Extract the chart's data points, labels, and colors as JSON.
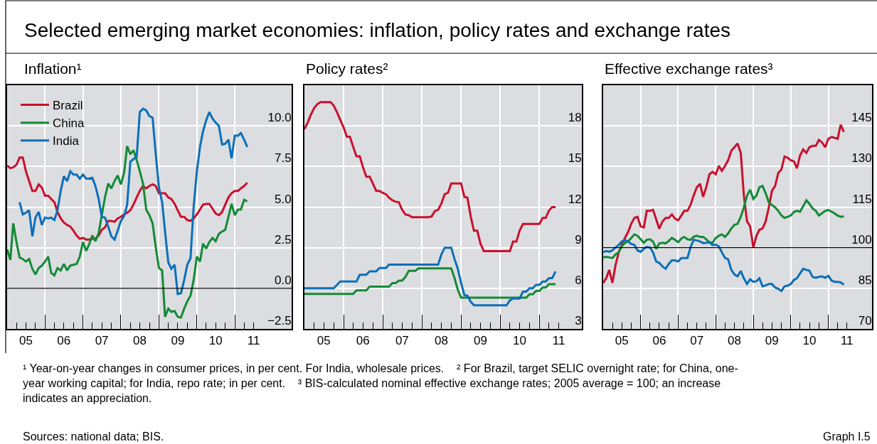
{
  "chart_data": [
    {
      "type": "line",
      "title": "Inflation¹",
      "annotations": [
        "Selected emerging market economies: inflation, policy rates and exchange rates",
        "¹ Year-on-year changes in consumer prices, in per cent. For India, wholesale prices.",
        "² For Brazil, target SELIC overnight rate; for China, one-year working capital; for India, repo rate; in per cent.",
        "³ BIS-calculated nominal effective exchange rates; 2005 average = 100; an increase indicates an appreciation.",
        "Sources: national data; BIS.",
        "Graph I.5"
      ],
      "x": [
        "2005-01",
        "2005-02",
        "2005-03",
        "2005-04",
        "2005-05",
        "2005-06",
        "2005-07",
        "2005-08",
        "2005-09",
        "2005-10",
        "2005-11",
        "2005-12",
        "2006-01",
        "2006-02",
        "2006-03",
        "2006-04",
        "2006-05",
        "2006-06",
        "2006-07",
        "2006-08",
        "2006-09",
        "2006-10",
        "2006-11",
        "2006-12",
        "2007-01",
        "2007-02",
        "2007-03",
        "2007-04",
        "2007-05",
        "2007-06",
        "2007-07",
        "2007-08",
        "2007-09",
        "2007-10",
        "2007-11",
        "2007-12",
        "2008-01",
        "2008-02",
        "2008-03",
        "2008-04",
        "2008-05",
        "2008-06",
        "2008-07",
        "2008-08",
        "2008-09",
        "2008-10",
        "2008-11",
        "2008-12",
        "2009-01",
        "2009-02",
        "2009-03",
        "2009-04",
        "2009-05",
        "2009-06",
        "2009-07",
        "2009-08",
        "2009-09",
        "2009-10",
        "2009-11",
        "2009-12",
        "2010-01",
        "2010-02",
        "2010-03",
        "2010-04",
        "2010-05",
        "2010-06",
        "2010-07",
        "2010-08",
        "2010-09",
        "2010-10",
        "2010-11",
        "2010-12",
        "2011-01",
        "2011-02",
        "2011-03",
        "2011-04",
        "2011-05"
      ],
      "series": [
        {
          "name": "Brazil",
          "color": "#c8102e",
          "values": [
            7.55,
            7.4,
            7.45,
            7.6,
            8.05,
            8.05,
            7.2,
            6.6,
            6.0,
            6.0,
            6.4,
            6.2,
            5.7,
            5.7,
            5.5,
            5.3,
            4.7,
            4.3,
            4.05,
            3.9,
            3.8,
            3.55,
            3.25,
            3.05,
            3.1,
            3.0,
            3.0,
            3.05,
            3.05,
            3.25,
            3.6,
            3.75,
            4.15,
            4.15,
            4.1,
            4.3,
            4.4,
            4.55,
            4.65,
            4.8,
            5.15,
            5.6,
            6.0,
            6.3,
            6.15,
            6.3,
            6.4,
            6.3,
            5.85,
            5.85,
            5.85,
            5.6,
            5.5,
            5.2,
            4.8,
            4.4,
            4.4,
            4.2,
            4.15,
            4.3,
            4.55,
            4.85,
            5.15,
            5.2,
            5.2,
            4.9,
            4.6,
            4.5,
            4.7,
            5.15,
            5.6,
            5.85,
            6.0,
            6.0,
            6.15,
            6.3,
            6.5
          ]
        },
        {
          "name": "China",
          "color": "#138a36",
          "values": [
            2.4,
            1.75,
            4.0,
            2.85,
            1.9,
            1.8,
            1.65,
            1.8,
            1.2,
            0.85,
            1.25,
            1.4,
            1.65,
            1.95,
            0.95,
            0.8,
            1.25,
            1.1,
            1.5,
            1.1,
            1.4,
            1.45,
            1.5,
            1.95,
            2.85,
            2.3,
            2.7,
            3.25,
            2.9,
            3.4,
            4.5,
            5.6,
            6.45,
            6.15,
            6.6,
            6.95,
            6.4,
            7.1,
            8.75,
            8.25,
            8.5,
            7.9,
            7.2,
            6.45,
            4.85,
            4.5,
            4.0,
            2.55,
            1.25,
            1.1,
            -1.75,
            -1.25,
            -1.45,
            -1.4,
            -1.75,
            -1.8,
            -1.25,
            -0.8,
            -0.45,
            0.5,
            1.95,
            1.65,
            2.75,
            2.45,
            2.85,
            3.1,
            2.9,
            3.35,
            3.5,
            3.6,
            4.4,
            5.2,
            4.5,
            4.85,
            4.85,
            5.45,
            5.35
          ]
        },
        {
          "name": "India",
          "color": "#0b6fb8",
          "x": [
            "2005-05",
            "2005-06",
            "2005-07",
            "2005-08",
            "2005-09",
            "2005-10",
            "2005-11",
            "2005-12",
            "2006-01",
            "2006-02",
            "2006-03",
            "2006-04",
            "2006-05",
            "2006-06",
            "2006-07",
            "2006-08",
            "2006-09",
            "2006-10",
            "2006-11",
            "2006-12",
            "2007-01",
            "2007-02",
            "2007-03",
            "2007-04",
            "2007-05",
            "2007-06",
            "2007-07",
            "2007-08",
            "2007-09",
            "2007-10",
            "2007-11",
            "2007-12",
            "2008-01",
            "2008-02",
            "2008-03",
            "2008-04",
            "2008-05",
            "2008-06",
            "2008-07",
            "2008-08",
            "2008-09",
            "2008-10",
            "2008-11",
            "2008-12",
            "2009-01",
            "2009-02",
            "2009-03",
            "2009-04",
            "2009-05",
            "2009-06",
            "2009-07",
            "2009-08",
            "2009-09",
            "2009-10",
            "2009-11",
            "2009-12",
            "2010-01",
            "2010-02",
            "2010-03",
            "2010-04",
            "2010-05",
            "2010-06",
            "2010-07",
            "2010-08",
            "2010-09",
            "2010-10",
            "2010-11",
            "2010-12",
            "2011-01",
            "2011-02",
            "2011-03",
            "2011-04",
            "2011-05"
          ],
          "values": [
            5.3,
            4.55,
            4.65,
            4.8,
            3.2,
            4.35,
            4.7,
            3.9,
            4.35,
            4.3,
            4.35,
            4.2,
            4.8,
            6.0,
            6.9,
            6.6,
            7.2,
            7.0,
            7.0,
            6.75,
            7.0,
            6.75,
            6.75,
            6.8,
            6.3,
            5.5,
            4.4,
            4.35,
            3.8,
            3.2,
            3.0,
            3.55,
            4.15,
            4.45,
            5.15,
            7.8,
            7.95,
            8.1,
            10.85,
            11.05,
            10.95,
            10.6,
            10.5,
            8.3,
            6.2,
            5.3,
            3.5,
            1.6,
            1.2,
            1.45,
            -0.35,
            -0.3,
            0.5,
            1.45,
            1.85,
            5.0,
            7.2,
            8.75,
            9.65,
            10.35,
            10.85,
            10.45,
            10.2,
            10.0,
            8.85,
            8.9,
            9.15,
            8.0,
            9.4,
            9.4,
            9.55,
            9.15,
            8.7
          ]
        }
      ],
      "xlim": [
        "2005-01",
        "2012-07"
      ],
      "xticks": [
        {
          "value": "2005-04",
          "label": null
        },
        {
          "value": "2005-07",
          "label": "05"
        },
        {
          "value": "2005-10",
          "label": null
        },
        {
          "value": "2006-01",
          "label": null
        },
        {
          "value": "2006-04",
          "label": null
        },
        {
          "value": "2006-07",
          "label": "06"
        },
        {
          "value": "2006-10",
          "label": null
        },
        {
          "value": "2007-01",
          "label": null
        },
        {
          "value": "2007-04",
          "label": null
        },
        {
          "value": "2007-07",
          "label": "07"
        },
        {
          "value": "2007-10",
          "label": null
        },
        {
          "value": "2008-01",
          "label": null
        },
        {
          "value": "2008-04",
          "label": null
        },
        {
          "value": "2008-07",
          "label": "08"
        },
        {
          "value": "2008-10",
          "label": null
        },
        {
          "value": "2009-01",
          "label": null
        },
        {
          "value": "2009-04",
          "label": null
        },
        {
          "value": "2009-07",
          "label": "09"
        },
        {
          "value": "2009-10",
          "label": null
        },
        {
          "value": "2010-01",
          "label": null
        },
        {
          "value": "2010-04",
          "label": null
        },
        {
          "value": "2010-07",
          "label": "10"
        },
        {
          "value": "2010-10",
          "label": null
        },
        {
          "value": "2011-01",
          "label": null
        },
        {
          "value": "2011-04",
          "label": null
        },
        {
          "value": "2011-07",
          "label": "11"
        }
      ],
      "ylim": [
        -2.5,
        12.5
      ],
      "yticks": [
        {
          "value": -2.5,
          "label": "−2.5"
        },
        {
          "value": 0,
          "label": "0.0"
        },
        2.5,
        {
          "value": 5,
          "label": "5.0"
        },
        7.5,
        {
          "value": 10,
          "label": "10.0"
        }
      ],
      "ref_lines": [
        {
          "axis": "y",
          "value": 0,
          "color": "#000000"
        }
      ],
      "grid": true,
      "legend": "top left"
    },
    {
      "type": "line",
      "title": "Policy rates²",
      "x": [
        "2005-01",
        "2005-02",
        "2005-03",
        "2005-04",
        "2005-05",
        "2005-06",
        "2005-07",
        "2005-08",
        "2005-09",
        "2005-10",
        "2005-11",
        "2005-12",
        "2006-01",
        "2006-02",
        "2006-03",
        "2006-04",
        "2006-05",
        "2006-06",
        "2006-07",
        "2006-08",
        "2006-09",
        "2006-10",
        "2006-11",
        "2006-12",
        "2007-01",
        "2007-02",
        "2007-03",
        "2007-04",
        "2007-05",
        "2007-06",
        "2007-07",
        "2007-08",
        "2007-09",
        "2007-10",
        "2007-11",
        "2007-12",
        "2008-01",
        "2008-02",
        "2008-03",
        "2008-04",
        "2008-05",
        "2008-06",
        "2008-07",
        "2008-08",
        "2008-09",
        "2008-10",
        "2008-11",
        "2008-12",
        "2009-01",
        "2009-02",
        "2009-03",
        "2009-04",
        "2009-05",
        "2009-06",
        "2009-07",
        "2009-08",
        "2009-09",
        "2009-10",
        "2009-11",
        "2009-12",
        "2010-01",
        "2010-02",
        "2010-03",
        "2010-04",
        "2010-05",
        "2010-06",
        "2010-07",
        "2010-08",
        "2010-09",
        "2010-10",
        "2010-11",
        "2010-12",
        "2011-01",
        "2011-02",
        "2011-03",
        "2011-04",
        "2011-05",
        "2011-06"
      ],
      "series": [
        {
          "color": "#c8102e",
          "values": [
            17.75,
            18.25,
            18.8,
            19.3,
            19.6,
            19.75,
            19.75,
            19.75,
            19.75,
            19.5,
            19.0,
            18.45,
            17.9,
            17.2,
            17.2,
            16.45,
            15.75,
            15.75,
            14.95,
            14.25,
            14.25,
            13.75,
            13.2,
            13.2,
            13.05,
            12.95,
            12.7,
            12.5,
            12.4,
            12.35,
            11.8,
            11.45,
            11.4,
            11.25,
            11.25,
            11.25,
            11.25,
            11.25,
            11.25,
            11.3,
            11.7,
            11.8,
            12.25,
            12.95,
            13.05,
            13.75,
            13.75,
            13.75,
            13.75,
            12.75,
            12.7,
            11.3,
            10.25,
            10.25,
            9.3,
            8.75,
            8.75,
            8.75,
            8.75,
            8.75,
            8.75,
            8.75,
            8.75,
            8.75,
            9.45,
            9.45,
            10.25,
            10.75,
            10.75,
            10.75,
            10.75,
            10.75,
            10.75,
            11.2,
            11.2,
            11.75,
            12.0,
            12.0
          ]
        },
        {
          "color": "#138a36",
          "values": [
            5.58,
            5.58,
            5.58,
            5.58,
            5.58,
            5.58,
            5.58,
            5.58,
            5.58,
            5.58,
            5.58,
            5.58,
            5.58,
            5.58,
            5.58,
            5.58,
            5.85,
            5.85,
            5.85,
            5.85,
            6.12,
            6.12,
            6.12,
            6.12,
            6.12,
            6.12,
            6.12,
            6.39,
            6.39,
            6.57,
            6.57,
            6.84,
            7.29,
            7.29,
            7.29,
            7.47,
            7.47,
            7.47,
            7.47,
            7.47,
            7.47,
            7.47,
            7.47,
            7.47,
            7.47,
            7.47,
            6.75,
            5.9,
            5.31,
            5.31,
            5.31,
            5.31,
            5.31,
            5.31,
            5.31,
            5.31,
            5.31,
            5.31,
            5.31,
            5.31,
            5.31,
            5.31,
            5.31,
            5.31,
            5.31,
            5.31,
            5.31,
            5.31,
            5.31,
            5.56,
            5.56,
            5.81,
            5.81,
            6.06,
            6.06,
            6.31,
            6.31,
            6.31
          ]
        },
        {
          "color": "#0b6fb8",
          "values": [
            6.0,
            6.0,
            6.0,
            6.0,
            6.0,
            6.0,
            6.0,
            6.0,
            6.0,
            6.0,
            6.25,
            6.5,
            6.5,
            6.5,
            6.5,
            6.5,
            6.5,
            7.0,
            7.0,
            7.0,
            7.25,
            7.25,
            7.25,
            7.5,
            7.5,
            7.5,
            7.75,
            7.75,
            7.75,
            7.75,
            7.75,
            7.75,
            7.75,
            7.75,
            7.75,
            7.75,
            7.75,
            7.75,
            7.75,
            7.75,
            7.75,
            7.75,
            8.5,
            9.0,
            9.0,
            9.0,
            8.15,
            7.45,
            6.4,
            5.5,
            5.45,
            5.0,
            4.75,
            4.75,
            4.75,
            4.75,
            4.75,
            4.75,
            4.75,
            4.75,
            4.75,
            4.75,
            4.75,
            5.1,
            5.25,
            5.25,
            5.25,
            5.75,
            5.75,
            6.0,
            6.0,
            6.25,
            6.25,
            6.5,
            6.5,
            6.75,
            6.75,
            7.25
          ]
        }
      ],
      "xlim": [
        "2005-01",
        "2012-02"
      ],
      "xticks": [
        {
          "value": "2005-04",
          "label": null
        },
        {
          "value": "2005-07",
          "label": "05"
        },
        {
          "value": "2005-10",
          "label": null
        },
        {
          "value": "2006-01",
          "label": null
        },
        {
          "value": "2006-04",
          "label": null
        },
        {
          "value": "2006-07",
          "label": "06"
        },
        {
          "value": "2006-10",
          "label": null
        },
        {
          "value": "2007-01",
          "label": null
        },
        {
          "value": "2007-04",
          "label": null
        },
        {
          "value": "2007-07",
          "label": "07"
        },
        {
          "value": "2007-10",
          "label": null
        },
        {
          "value": "2008-01",
          "label": null
        },
        {
          "value": "2008-04",
          "label": null
        },
        {
          "value": "2008-07",
          "label": "08"
        },
        {
          "value": "2008-10",
          "label": null
        },
        {
          "value": "2009-01",
          "label": null
        },
        {
          "value": "2009-04",
          "label": null
        },
        {
          "value": "2009-07",
          "label": "09"
        },
        {
          "value": "2009-10",
          "label": null
        },
        {
          "value": "2010-01",
          "label": null
        },
        {
          "value": "2010-04",
          "label": null
        },
        {
          "value": "2010-07",
          "label": "10"
        },
        {
          "value": "2010-10",
          "label": null
        },
        {
          "value": "2011-01",
          "label": null
        },
        {
          "value": "2011-04",
          "label": null
        },
        {
          "value": "2011-07",
          "label": "11"
        }
      ],
      "ylim": [
        3,
        21
      ],
      "yticks": [
        3,
        6,
        9,
        12,
        15,
        18
      ],
      "grid": true
    },
    {
      "type": "line",
      "title": "Effective exchange rates³",
      "x": [
        "2005-01",
        "2005-02",
        "2005-03",
        "2005-04",
        "2005-05",
        "2005-06",
        "2005-07",
        "2005-08",
        "2005-09",
        "2005-10",
        "2005-11",
        "2005-12",
        "2006-01",
        "2006-02",
        "2006-03",
        "2006-04",
        "2006-05",
        "2006-06",
        "2006-07",
        "2006-08",
        "2006-09",
        "2006-10",
        "2006-11",
        "2006-12",
        "2007-01",
        "2007-02",
        "2007-03",
        "2007-04",
        "2007-05",
        "2007-06",
        "2007-07",
        "2007-08",
        "2007-09",
        "2007-10",
        "2007-11",
        "2007-12",
        "2008-01",
        "2008-02",
        "2008-03",
        "2008-04",
        "2008-05",
        "2008-06",
        "2008-07",
        "2008-08",
        "2008-09",
        "2008-10",
        "2008-11",
        "2008-12",
        "2009-01",
        "2009-02",
        "2009-03",
        "2009-04",
        "2009-05",
        "2009-06",
        "2009-07",
        "2009-08",
        "2009-09",
        "2009-10",
        "2009-11",
        "2009-12",
        "2010-01",
        "2010-02",
        "2010-03",
        "2010-04",
        "2010-05",
        "2010-06",
        "2010-07",
        "2010-08",
        "2010-09",
        "2010-10",
        "2010-11",
        "2010-12",
        "2011-01",
        "2011-02",
        "2011-03",
        "2011-04",
        "2011-05",
        "2011-06"
      ],
      "series": [
        {
          "color": "#c8102e",
          "values": [
            87.0,
            88.8,
            91.8,
            87.0,
            93.5,
            98.3,
            101.0,
            103.6,
            105.8,
            108.8,
            111.0,
            111.4,
            107.9,
            107.5,
            113.6,
            113.6,
            114.0,
            110.5,
            107.0,
            109.7,
            111.0,
            111.0,
            112.3,
            110.7,
            110.1,
            111.9,
            113.6,
            113.6,
            115.8,
            119.3,
            122.3,
            123.6,
            118.8,
            122.3,
            127.1,
            128.0,
            127.1,
            130.2,
            128.4,
            130.2,
            132.3,
            135.8,
            137.1,
            138.5,
            135.0,
            119.3,
            109.7,
            107.9,
            100.1,
            104.4,
            106.6,
            107.1,
            109.7,
            114.9,
            121.0,
            122.8,
            127.6,
            128.9,
            133.7,
            133.2,
            132.3,
            131.9,
            129.3,
            134.1,
            136.3,
            135.0,
            137.1,
            137.6,
            137.6,
            139.8,
            138.9,
            137.1,
            140.2,
            140.9,
            140.6,
            140.2,
            145.4,
            142.8
          ]
        },
        {
          "color": "#138a36",
          "values": [
            96.4,
            96.6,
            96.4,
            96.2,
            97.5,
            98.3,
            100.5,
            101.8,
            102.3,
            103.6,
            104.9,
            104.4,
            103.1,
            101.8,
            102.9,
            103.1,
            102.3,
            99.6,
            101.6,
            101.8,
            101.6,
            102.5,
            103.6,
            102.9,
            102.0,
            103.4,
            104.0,
            103.1,
            102.9,
            104.0,
            104.4,
            104.0,
            104.0,
            103.1,
            102.0,
            101.8,
            103.6,
            104.4,
            104.9,
            104.0,
            105.3,
            107.1,
            108.4,
            108.8,
            111.4,
            114.9,
            119.3,
            121.4,
            118.0,
            119.3,
            122.3,
            122.8,
            120.1,
            116.7,
            115.8,
            114.9,
            113.6,
            111.9,
            111.0,
            111.4,
            111.9,
            113.2,
            113.6,
            113.3,
            115.3,
            117.5,
            116.2,
            114.5,
            113.6,
            111.9,
            112.7,
            113.6,
            113.9,
            113.3,
            112.7,
            111.9,
            111.4,
            111.6
          ]
        },
        {
          "color": "#0b6fb8",
          "values": [
            98.3,
            98.8,
            98.5,
            99.0,
            100.1,
            101.0,
            102.3,
            102.9,
            102.3,
            101.4,
            101.0,
            99.0,
            98.5,
            99.6,
            100.3,
            100.1,
            98.3,
            94.9,
            94.4,
            93.1,
            92.2,
            94.0,
            95.3,
            95.3,
            94.9,
            96.2,
            96.2,
            96.2,
            100.1,
            102.9,
            102.7,
            102.3,
            101.7,
            101.8,
            102.0,
            101.0,
            101.1,
            100.5,
            98.3,
            96.2,
            95.7,
            91.8,
            90.1,
            89.4,
            91.4,
            88.7,
            86.6,
            88.3,
            87.4,
            87.6,
            88.7,
            85.7,
            86.1,
            86.6,
            86.6,
            85.3,
            84.8,
            84.0,
            85.7,
            86.0,
            86.6,
            88.1,
            88.7,
            90.5,
            92.2,
            91.8,
            91.5,
            89.2,
            88.9,
            89.2,
            89.4,
            88.9,
            89.6,
            87.9,
            87.4,
            87.4,
            87.2,
            86.3
          ]
        }
      ],
      "xlim": [
        "2005-01",
        "2012-03"
      ],
      "xticks": [
        {
          "value": "2005-04",
          "label": null
        },
        {
          "value": "2005-07",
          "label": "05"
        },
        {
          "value": "2005-10",
          "label": null
        },
        {
          "value": "2006-01",
          "label": null
        },
        {
          "value": "2006-04",
          "label": null
        },
        {
          "value": "2006-07",
          "label": "06"
        },
        {
          "value": "2006-10",
          "label": null
        },
        {
          "value": "2007-01",
          "label": null
        },
        {
          "value": "2007-04",
          "label": null
        },
        {
          "value": "2007-07",
          "label": "07"
        },
        {
          "value": "2007-10",
          "label": null
        },
        {
          "value": "2008-01",
          "label": null
        },
        {
          "value": "2008-04",
          "label": null
        },
        {
          "value": "2008-07",
          "label": "08"
        },
        {
          "value": "2008-10",
          "label": null
        },
        {
          "value": "2009-01",
          "label": null
        },
        {
          "value": "2009-04",
          "label": null
        },
        {
          "value": "2009-07",
          "label": "09"
        },
        {
          "value": "2009-10",
          "label": null
        },
        {
          "value": "2010-01",
          "label": null
        },
        {
          "value": "2010-04",
          "label": null
        },
        {
          "value": "2010-07",
          "label": "10"
        },
        {
          "value": "2010-10",
          "label": null
        },
        {
          "value": "2011-01",
          "label": null
        },
        {
          "value": "2011-04",
          "label": null
        },
        {
          "value": "2011-07",
          "label": "11"
        }
      ],
      "ylim": [
        70,
        160
      ],
      "yticks": [
        70,
        85,
        100,
        115,
        130,
        145
      ],
      "ref_lines": [
        {
          "axis": "y",
          "value": 100,
          "color": "#000000"
        }
      ],
      "grid": true
    }
  ]
}
